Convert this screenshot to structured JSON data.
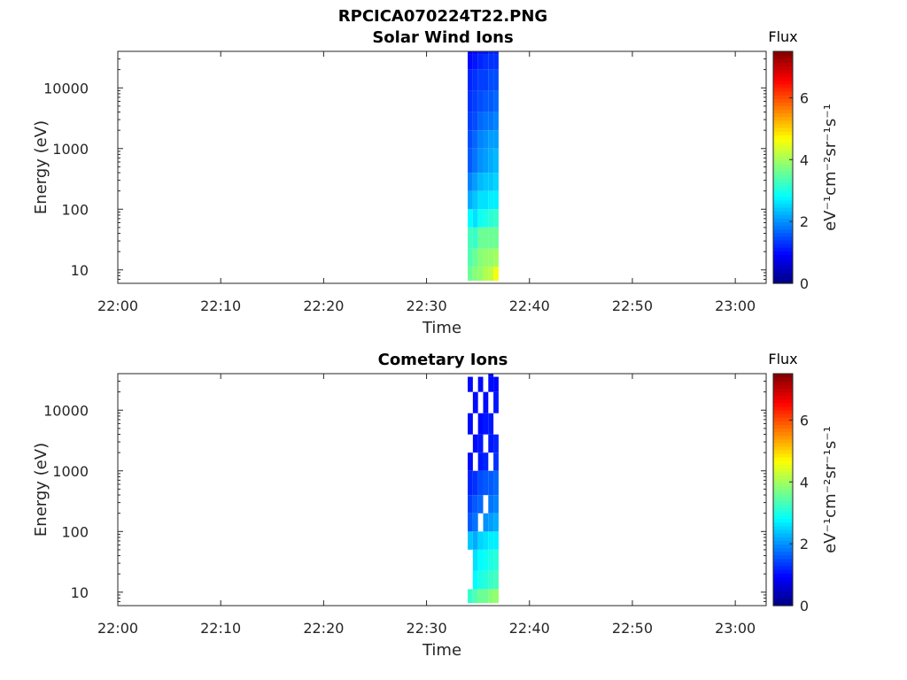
{
  "figure": {
    "title": "RPCICA070224T22.PNG"
  },
  "chart_data": [
    {
      "type": "heatmap",
      "title": "Solar Wind Ions",
      "xlabel": "Time",
      "ylabel": "Energy (eV)",
      "x_range": [
        "22:00",
        "23:03"
      ],
      "x_ticks": [
        "22:00",
        "22:10",
        "22:20",
        "22:30",
        "22:40",
        "22:50",
        "23:00"
      ],
      "y_scale": "log",
      "y_range": [
        6,
        40000
      ],
      "y_ticks": [
        "10",
        "100",
        "1000",
        "10000"
      ],
      "colorbar": {
        "title": "Flux",
        "label": "eV⁻¹cm⁻²sr⁻¹s⁻¹",
        "range": [
          0,
          7.5
        ],
        "ticks": [
          "0",
          "2",
          "4",
          "6"
        ],
        "colormap": "jet"
      },
      "time_bins": [
        "22:34:00",
        "22:34:30",
        "22:35:00",
        "22:35:30",
        "22:36:00",
        "22:36:30",
        "22:37:00"
      ],
      "energy_bins_log10": [
        0.82,
        1.05,
        1.35,
        1.7,
        2.0,
        2.3,
        2.6,
        3.0,
        3.3,
        3.6,
        3.95,
        4.3,
        4.55
      ],
      "flux_approx": [
        [
          3.6,
          3.8,
          3.9,
          4.1,
          4.2,
          4.6
        ],
        [
          3.4,
          3.6,
          3.8,
          3.9,
          3.9,
          4.0
        ],
        [
          3.3,
          3.2,
          3.6,
          3.6,
          3.6,
          3.6
        ],
        [
          2.8,
          2.6,
          2.9,
          3.0,
          3.1,
          3.2
        ],
        [
          2.2,
          2.4,
          2.6,
          2.6,
          2.7,
          2.7
        ],
        [
          1.9,
          2.1,
          2.3,
          2.4,
          2.4,
          2.5
        ],
        [
          1.6,
          1.8,
          2.0,
          2.1,
          2.2,
          2.3
        ],
        [
          1.5,
          1.7,
          1.9,
          2.0,
          2.1,
          2.1
        ],
        [
          1.4,
          1.5,
          1.7,
          1.8,
          1.8,
          1.9
        ],
        [
          1.3,
          1.4,
          1.5,
          1.6,
          1.6,
          1.7
        ],
        [
          1.2,
          1.3,
          1.4,
          1.4,
          1.5,
          1.5
        ],
        [
          1.0,
          1.1,
          1.2,
          1.3,
          1.3,
          1.3
        ],
        [
          0.9,
          1.0,
          1.1,
          1.1,
          1.2,
          1.2
        ]
      ]
    },
    {
      "type": "heatmap",
      "title": "Cometary Ions",
      "xlabel": "Time",
      "ylabel": "Energy (eV)",
      "x_range": [
        "22:00",
        "23:03"
      ],
      "x_ticks": [
        "22:00",
        "22:10",
        "22:20",
        "22:30",
        "22:40",
        "22:50",
        "23:00"
      ],
      "y_scale": "log",
      "y_range": [
        6,
        40000
      ],
      "y_ticks": [
        "10",
        "100",
        "1000",
        "10000"
      ],
      "colorbar": {
        "title": "Flux",
        "label": "eV⁻¹cm⁻²sr⁻¹s⁻¹",
        "range": [
          0,
          7.5
        ],
        "ticks": [
          "0",
          "2",
          "4",
          "6"
        ],
        "colormap": "jet"
      },
      "time_bins": [
        "22:34:00",
        "22:34:30",
        "22:35:00",
        "22:35:30",
        "22:36:00",
        "22:36:30",
        "22:37:00"
      ],
      "energy_bins_log10": [
        0.82,
        1.05,
        1.35,
        1.7,
        2.0,
        2.3,
        2.6,
        3.0,
        3.3,
        3.6,
        3.95,
        4.3,
        4.55
      ],
      "flux_approx": [
        [
          3.2,
          3.4,
          3.6,
          3.6,
          3.8,
          3.9
        ],
        [
          null,
          2.8,
          3.0,
          3.1,
          3.2,
          3.3
        ],
        [
          null,
          2.6,
          2.8,
          2.9,
          3.0,
          3.1
        ],
        [
          2.4,
          2.2,
          2.5,
          2.6,
          2.7,
          2.7
        ],
        [
          1.6,
          1.8,
          null,
          2.0,
          2.1,
          2.2
        ],
        [
          1.4,
          1.6,
          1.7,
          null,
          1.8,
          1.9
        ],
        [
          1.2,
          1.3,
          1.5,
          1.6,
          1.6,
          1.7
        ],
        [
          1.0,
          null,
          1.1,
          1.2,
          null,
          1.3
        ],
        [
          null,
          1.0,
          1.1,
          null,
          1.1,
          1.2
        ],
        [
          1.0,
          null,
          1.0,
          1.1,
          1.1,
          null
        ],
        [
          null,
          1.0,
          null,
          1.0,
          null,
          1.1
        ],
        [
          1.0,
          null,
          1.0,
          null,
          1.0,
          1.0
        ],
        [
          null,
          null,
          null,
          null,
          1.0,
          null
        ]
      ]
    }
  ]
}
